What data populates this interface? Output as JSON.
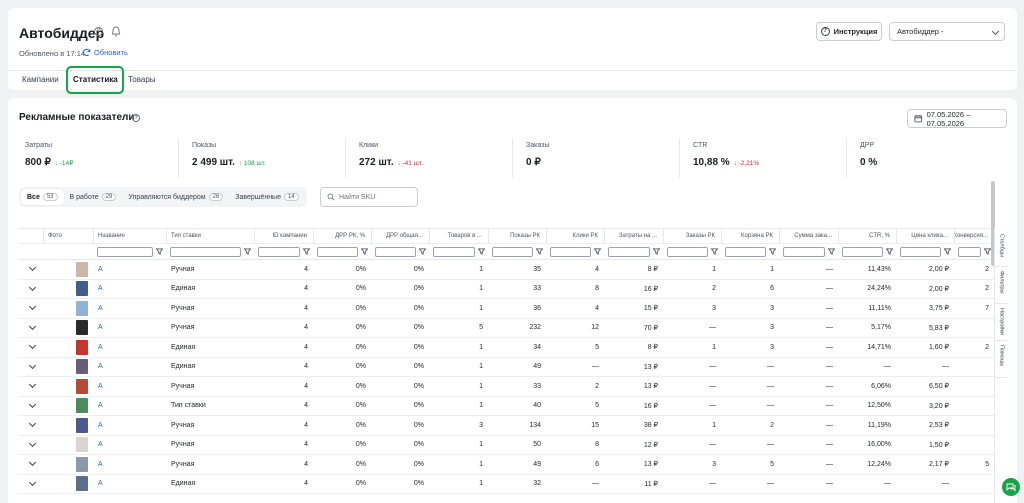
{
  "header": {
    "title": "Автобиддер",
    "updated_text": "Обновлено в 17:14",
    "refresh_label": "Обновить",
    "instruction_label": "Инструкция",
    "select_value": "Автобиддер -"
  },
  "tabs": [
    {
      "label": "Кампании"
    },
    {
      "label": "Статистика",
      "active": true
    },
    {
      "label": "Товары"
    }
  ],
  "section": {
    "title": "Рекламные показатели",
    "date_range": "07.05.2026 – 07.05.2026"
  },
  "metrics": [
    {
      "label": "Затраты",
      "value": "800 ₽",
      "delta": "-14₽",
      "trend": "down",
      "color": "green"
    },
    {
      "label": "Показы",
      "value": "2 499 шт.",
      "delta": "108 шт.",
      "trend": "up",
      "color": "green"
    },
    {
      "label": "Клики",
      "value": "272 шт.",
      "delta": "-41 шт.",
      "trend": "down",
      "color": "red"
    },
    {
      "label": "Заказы",
      "value": "0 ₽",
      "delta": "",
      "trend": "",
      "color": ""
    },
    {
      "label": "CTR",
      "value": "10,88 %",
      "delta": "-2,21%",
      "trend": "down",
      "color": "red"
    },
    {
      "label": "ДРР",
      "value": "0 %",
      "delta": "",
      "trend": "",
      "color": ""
    }
  ],
  "filters": [
    {
      "label": "Все",
      "count": "53",
      "active": true
    },
    {
      "label": "В работе",
      "count": "29"
    },
    {
      "label": "Управляются биддером",
      "count": "26"
    },
    {
      "label": "Завершённые",
      "count": "14"
    }
  ],
  "sku_placeholder": "Найти SKU",
  "table": {
    "columns": [
      "Фото",
      "Название",
      "Тип ставки",
      "ID кампании",
      "ДРР РК, %",
      "ДРР общая...",
      "Товаров в ...",
      "Показы РК",
      "Клики РК",
      "Затраты на ...",
      "Заказы РК",
      "Корзина РК",
      "Сумма зака...",
      "CTR, %",
      "Цена клика...",
      "Конверсия..."
    ],
    "rows": [
      {
        "name": "А",
        "type": "Ручная",
        "id": "4",
        "drr": "0%",
        "drr_total": "0%",
        "items": "1",
        "shows": "35",
        "clicks": "4",
        "spend": "8 ₽",
        "orders": "1",
        "cart": "1",
        "sum": "—",
        "ctr": "11,43%",
        "cpc": "2,00 ₽",
        "conv": "2",
        "thumb": "#c9b8a8"
      },
      {
        "name": "А",
        "type": "Единая",
        "id": "4",
        "drr": "0%",
        "drr_total": "0%",
        "items": "1",
        "shows": "33",
        "clicks": "8",
        "spend": "16 ₽",
        "orders": "2",
        "cart": "6",
        "sum": "—",
        "ctr": "24,24%",
        "cpc": "2,00 ₽",
        "conv": "2",
        "thumb": "#3f5f8a"
      },
      {
        "name": "А",
        "type": "Ручная",
        "id": "4",
        "drr": "0%",
        "drr_total": "0%",
        "items": "1",
        "shows": "36",
        "clicks": "4",
        "spend": "15 ₽",
        "orders": "3",
        "cart": "3",
        "sum": "—",
        "ctr": "11,11%",
        "cpc": "3,75 ₽",
        "conv": "7",
        "thumb": "#8fb3d6"
      },
      {
        "name": "А",
        "type": "Ручная",
        "id": "4",
        "drr": "0%",
        "drr_total": "0%",
        "items": "5",
        "shows": "232",
        "clicks": "12",
        "spend": "70 ₽",
        "orders": "—",
        "cart": "3",
        "sum": "—",
        "ctr": "5,17%",
        "cpc": "5,83 ₽",
        "conv": "",
        "thumb": "#2a2a2a"
      },
      {
        "name": "А",
        "type": "Единая",
        "id": "4",
        "drr": "0%",
        "drr_total": "0%",
        "items": "1",
        "shows": "34",
        "clicks": "5",
        "spend": "8 ₽",
        "orders": "1",
        "cart": "3",
        "sum": "—",
        "ctr": "14,71%",
        "cpc": "1,60 ₽",
        "conv": "2",
        "thumb": "#c0392b"
      },
      {
        "name": "А",
        "type": "Единая",
        "id": "4",
        "drr": "0%",
        "drr_total": "0%",
        "items": "1",
        "shows": "49",
        "clicks": "—",
        "spend": "13 ₽",
        "orders": "—",
        "cart": "—",
        "sum": "—",
        "ctr": "—",
        "cpc": "—",
        "conv": "",
        "thumb": "#6b5b7a"
      },
      {
        "name": "А",
        "type": "Ручная",
        "id": "4",
        "drr": "0%",
        "drr_total": "0%",
        "items": "1",
        "shows": "33",
        "clicks": "2",
        "spend": "13 ₽",
        "orders": "—",
        "cart": "—",
        "sum": "—",
        "ctr": "6,06%",
        "cpc": "6,50 ₽",
        "conv": "",
        "thumb": "#b54a3a"
      },
      {
        "name": "А",
        "type": "Тип ставки",
        "id": "4",
        "drr": "0%",
        "drr_total": "0%",
        "items": "1",
        "shows": "40",
        "clicks": "5",
        "spend": "16 ₽",
        "orders": "—",
        "cart": "—",
        "sum": "—",
        "ctr": "12,50%",
        "cpc": "3,20 ₽",
        "conv": "",
        "thumb": "#4d8a5c"
      },
      {
        "name": "А",
        "type": "Ручная",
        "id": "4",
        "drr": "0%",
        "drr_total": "0%",
        "items": "3",
        "shows": "134",
        "clicks": "15",
        "spend": "38 ₽",
        "orders": "1",
        "cart": "2",
        "sum": "—",
        "ctr": "11,19%",
        "cpc": "2,53 ₽",
        "conv": "",
        "thumb": "#4a5a8c"
      },
      {
        "name": "А",
        "type": "Ручная",
        "id": "4",
        "drr": "0%",
        "drr_total": "0%",
        "items": "1",
        "shows": "50",
        "clicks": "8",
        "spend": "12 ₽",
        "orders": "—",
        "cart": "—",
        "sum": "—",
        "ctr": "16,00%",
        "cpc": "1,50 ₽",
        "conv": "",
        "thumb": "#d9d4cf"
      },
      {
        "name": "А",
        "type": "Ручная",
        "id": "4",
        "drr": "0%",
        "drr_total": "0%",
        "items": "1",
        "shows": "49",
        "clicks": "6",
        "spend": "13 ₽",
        "orders": "3",
        "cart": "5",
        "sum": "—",
        "ctr": "12,24%",
        "cpc": "2,17 ₽",
        "conv": "5",
        "thumb": "#8c9aa8"
      },
      {
        "name": "А",
        "type": "Единая",
        "id": "4",
        "drr": "0%",
        "drr_total": "0%",
        "items": "1",
        "shows": "32",
        "clicks": "—",
        "spend": "11 ₽",
        "orders": "—",
        "cart": "—",
        "sum": "—",
        "ctr": "—",
        "cpc": "—",
        "conv": "",
        "thumb": "#5b6e8c"
      }
    ]
  },
  "side_panel": [
    {
      "label": "Столбцы"
    },
    {
      "label": "Фильтры"
    },
    {
      "label": "Настройки"
    },
    {
      "label": "Помощь"
    }
  ],
  "colors": {
    "accent": "#2563eb",
    "highlight": "#16a34a",
    "positive": "#16a34a",
    "negative": "#dc2626"
  }
}
